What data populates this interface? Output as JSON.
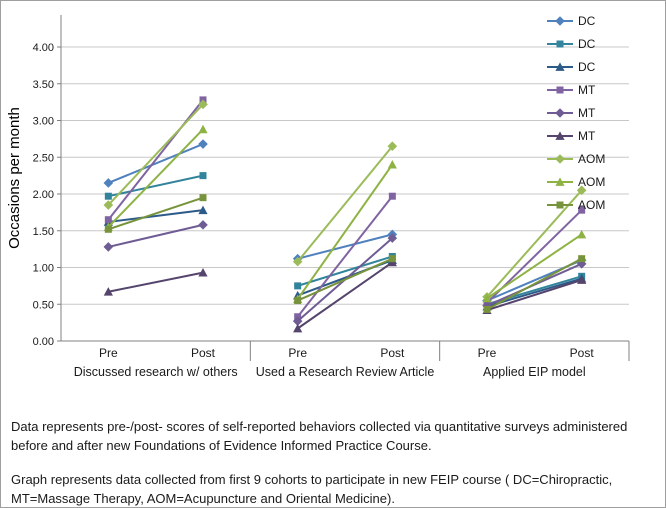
{
  "figure": {
    "captions": [
      "Data represents pre-/post- scores of self-reported behaviors collected via quantitative surveys administered before and after new Foundations of Evidence Informed Practice Course.",
      "Graph represents data collected from first 9 cohorts to participate in new FEIP course ( DC=Chiropractic, MT=Massage Therapy, AOM=Acupuncture and Oriental Medicine)."
    ]
  },
  "chart_data": {
    "type": "line",
    "title": "",
    "ylabel": "Occasions per month",
    "xlabel": "",
    "ylim": [
      0,
      4.0
    ],
    "ytick_step": 0.5,
    "grid": true,
    "legend_position": "right",
    "x_categories": [
      "Pre",
      "Post"
    ],
    "panels": [
      "Discussed research w/ others",
      "Used a Research Review Article",
      "Applied EIP model"
    ],
    "axis_color": "#808080",
    "grid_color": "#c8c8c8",
    "series": [
      {
        "name": "DC",
        "color": "#4f81bd",
        "marker": "diamond",
        "values": [
          [
            2.15,
            2.68
          ],
          [
            1.12,
            1.45
          ],
          [
            0.55,
            1.1
          ]
        ]
      },
      {
        "name": "DC",
        "color": "#31849b",
        "marker": "square",
        "values": [
          [
            1.97,
            2.25
          ],
          [
            0.75,
            1.15
          ],
          [
            0.5,
            0.88
          ]
        ]
      },
      {
        "name": "DC",
        "color": "#2c5a89",
        "marker": "triangle",
        "values": [
          [
            1.62,
            1.78
          ],
          [
            0.62,
            1.1
          ],
          [
            0.47,
            0.85
          ]
        ]
      },
      {
        "name": "MT",
        "color": "#8064a2",
        "marker": "square",
        "values": [
          [
            1.65,
            3.28
          ],
          [
            0.33,
            1.97
          ],
          [
            0.52,
            1.78
          ]
        ]
      },
      {
        "name": "MT",
        "color": "#6f5c94",
        "marker": "diamond",
        "values": [
          [
            1.28,
            1.58
          ],
          [
            0.27,
            1.4
          ],
          [
            0.48,
            1.05
          ]
        ]
      },
      {
        "name": "MT",
        "color": "#55446b",
        "marker": "triangle",
        "values": [
          [
            0.67,
            0.93
          ],
          [
            0.17,
            1.07
          ],
          [
            0.42,
            0.83
          ]
        ]
      },
      {
        "name": "AOM",
        "color": "#9bbb59",
        "marker": "diamond",
        "values": [
          [
            1.85,
            3.22
          ],
          [
            1.08,
            2.65
          ],
          [
            0.6,
            2.05
          ]
        ]
      },
      {
        "name": "AOM",
        "color": "#8eb344",
        "marker": "triangle",
        "values": [
          [
            1.55,
            2.88
          ],
          [
            0.57,
            2.4
          ],
          [
            0.58,
            1.45
          ]
        ]
      },
      {
        "name": "AOM",
        "color": "#77933c",
        "marker": "square",
        "values": [
          [
            1.52,
            1.95
          ],
          [
            0.55,
            1.12
          ],
          [
            0.43,
            1.12
          ]
        ]
      }
    ]
  }
}
